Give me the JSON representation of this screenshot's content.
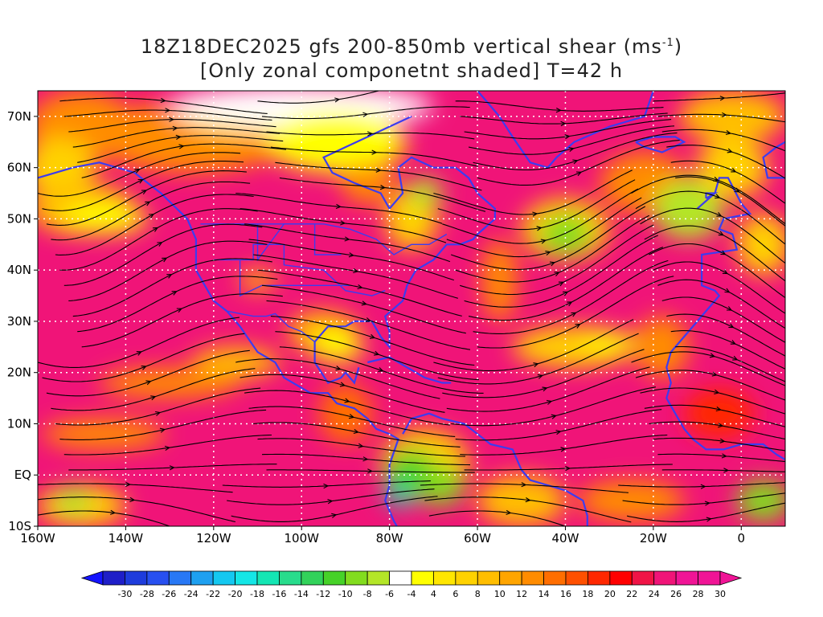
{
  "title": {
    "line1": "18Z18DEC2025 gfs 200-850mb vertical shear (ms",
    "line1_sup": "-1",
    "line1_end": ")",
    "line2": "[Only zonal componetnt shaded] T=42 h"
  },
  "map": {
    "lon_range": [
      -160,
      10
    ],
    "lat_range": [
      -10,
      75
    ],
    "lat_labels": [
      {
        "lat": 70,
        "text": "70N"
      },
      {
        "lat": 60,
        "text": "60N"
      },
      {
        "lat": 50,
        "text": "50N"
      },
      {
        "lat": 40,
        "text": "40N"
      },
      {
        "lat": 30,
        "text": "30N"
      },
      {
        "lat": 20,
        "text": "20N"
      },
      {
        "lat": 10,
        "text": "10N"
      },
      {
        "lat": 0,
        "text": "EQ"
      },
      {
        "lat": -10,
        "text": "10S"
      }
    ],
    "lon_labels": [
      {
        "lon": -160,
        "text": "160W"
      },
      {
        "lon": -140,
        "text": "140W"
      },
      {
        "lon": -120,
        "text": "120W"
      },
      {
        "lon": -100,
        "text": "100W"
      },
      {
        "lon": -80,
        "text": "80W"
      },
      {
        "lon": -60,
        "text": "60W"
      },
      {
        "lon": -40,
        "text": "40W"
      },
      {
        "lon": -20,
        "text": "20W"
      },
      {
        "lon": 0,
        "text": "0"
      }
    ]
  },
  "colorbar": {
    "ticks": [
      "-30",
      "-28",
      "-26",
      "-24",
      "-22",
      "-20",
      "-18",
      "-16",
      "-14",
      "-12",
      "-10",
      "-8",
      "-6",
      "-4",
      "4",
      "6",
      "8",
      "10",
      "12",
      "14",
      "16",
      "18",
      "20",
      "22",
      "24",
      "26",
      "28",
      "30"
    ],
    "colors": [
      "#1e1ec8",
      "#1e3cdc",
      "#2850f0",
      "#2878f5",
      "#1ea0f0",
      "#14c8f0",
      "#14e6e6",
      "#14e6b4",
      "#28dc8c",
      "#32d25a",
      "#46d228",
      "#82dc1e",
      "#b4e628",
      "#ffffff",
      "#ffff00",
      "#ffe600",
      "#ffd200",
      "#ffbe00",
      "#ffa500",
      "#ff8c00",
      "#ff6e00",
      "#ff5000",
      "#ff2800",
      "#ff0000",
      "#f01446",
      "#f01478",
      "#f01496",
      "#f01496"
    ]
  },
  "shading": {
    "bg_color": "#f01478",
    "blobs": [
      {
        "lon": -150,
        "lat": 68,
        "rx": 12,
        "ry": 7,
        "color": "#ff8c00"
      },
      {
        "lon": -155,
        "lat": 60,
        "rx": 8,
        "ry": 6,
        "color": "#ffd200"
      },
      {
        "lon": -150,
        "lat": 52,
        "rx": 12,
        "ry": 5,
        "color": "#ffbe00"
      },
      {
        "lon": -145,
        "lat": 50,
        "rx": 10,
        "ry": 3,
        "color": "#ffff00"
      },
      {
        "lon": -125,
        "lat": 66,
        "rx": 22,
        "ry": 7,
        "color": "#ff8c00"
      },
      {
        "lon": -115,
        "lat": 70,
        "rx": 12,
        "ry": 4,
        "color": "#ffd200"
      },
      {
        "lon": -100,
        "lat": 72,
        "rx": 30,
        "ry": 4,
        "color": "#ffffff"
      },
      {
        "lon": -92,
        "lat": 65,
        "rx": 16,
        "ry": 6,
        "color": "#ffff00"
      },
      {
        "lon": -85,
        "lat": 57,
        "rx": 6,
        "ry": 4,
        "color": "#ff8c00"
      },
      {
        "lon": -75,
        "lat": 50,
        "rx": 6,
        "ry": 6,
        "color": "#ffd200"
      },
      {
        "lon": -72,
        "lat": 55,
        "rx": 4,
        "ry": 3,
        "color": "#b4e628"
      },
      {
        "lon": -40,
        "lat": 48,
        "rx": 10,
        "ry": 6,
        "color": "#ffd200"
      },
      {
        "lon": -40,
        "lat": 47,
        "rx": 6,
        "ry": 4,
        "color": "#82dc1e"
      },
      {
        "lon": -22,
        "lat": 57,
        "rx": 10,
        "ry": 6,
        "color": "#ff8c00"
      },
      {
        "lon": -12,
        "lat": 52,
        "rx": 8,
        "ry": 6,
        "color": "#b4e628"
      },
      {
        "lon": -2,
        "lat": 60,
        "rx": 8,
        "ry": 6,
        "color": "#ffd200"
      },
      {
        "lon": -2,
        "lat": 70,
        "rx": 12,
        "ry": 5,
        "color": "#ffbe00"
      },
      {
        "lon": 5,
        "lat": 45,
        "rx": 6,
        "ry": 6,
        "color": "#ffd200"
      },
      {
        "lon": -110,
        "lat": 38,
        "rx": 4,
        "ry": 2,
        "color": "#ffbe00"
      },
      {
        "lon": -95,
        "lat": 28,
        "rx": 8,
        "ry": 4,
        "color": "#ffbe00"
      },
      {
        "lon": -92,
        "lat": 25,
        "rx": 6,
        "ry": 3,
        "color": "#ffff00"
      },
      {
        "lon": -115,
        "lat": 22,
        "rx": 10,
        "ry": 3,
        "color": "#ffbe00"
      },
      {
        "lon": -38,
        "lat": 25,
        "rx": 14,
        "ry": 4,
        "color": "#ffd200"
      },
      {
        "lon": -30,
        "lat": 26,
        "rx": 6,
        "ry": 2,
        "color": "#ffff00"
      },
      {
        "lon": -55,
        "lat": 38,
        "rx": 4,
        "ry": 8,
        "color": "#ff8c00"
      },
      {
        "lon": -130,
        "lat": 18,
        "rx": 16,
        "ry": 3,
        "color": "#ff8c00"
      },
      {
        "lon": -145,
        "lat": 8,
        "rx": 14,
        "ry": 3,
        "color": "#ff8c00"
      },
      {
        "lon": -90,
        "lat": 12,
        "rx": 6,
        "ry": 6,
        "color": "#ff6e00"
      },
      {
        "lon": -72,
        "lat": 2,
        "rx": 10,
        "ry": 7,
        "color": "#ffd200"
      },
      {
        "lon": -75,
        "lat": 0,
        "rx": 6,
        "ry": 5,
        "color": "#46d228"
      },
      {
        "lon": -68,
        "lat": -2,
        "rx": 5,
        "ry": 4,
        "color": "#82dc1e"
      },
      {
        "lon": -78,
        "lat": -4,
        "rx": 3,
        "ry": 2,
        "color": "#14e6b4"
      },
      {
        "lon": -50,
        "lat": -5,
        "rx": 10,
        "ry": 5,
        "color": "#ffbe00"
      },
      {
        "lon": -25,
        "lat": -5,
        "rx": 12,
        "ry": 4,
        "color": "#ff8c00"
      },
      {
        "lon": -150,
        "lat": -6,
        "rx": 10,
        "ry": 4,
        "color": "#ffd200"
      },
      {
        "lon": -152,
        "lat": -5,
        "rx": 4,
        "ry": 3,
        "color": "#b4e628"
      },
      {
        "lon": 5,
        "lat": -5,
        "rx": 6,
        "ry": 4,
        "color": "#82dc1e"
      },
      {
        "lon": -5,
        "lat": 12,
        "rx": 8,
        "ry": 5,
        "color": "#ff2800"
      },
      {
        "lon": -18,
        "lat": 25,
        "rx": 6,
        "ry": 6,
        "color": "#ff8c00"
      }
    ]
  }
}
